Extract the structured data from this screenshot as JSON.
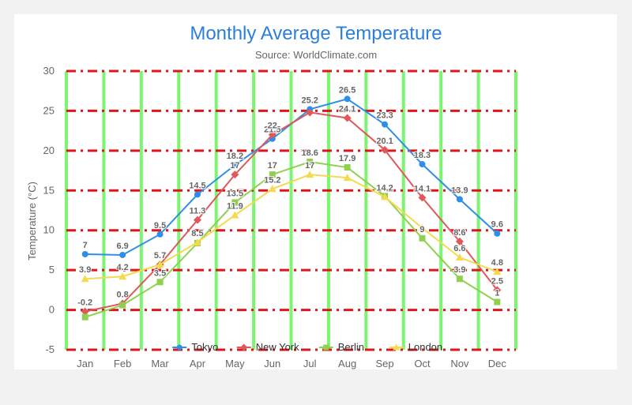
{
  "chart_data": {
    "type": "line",
    "title": "Monthly Average Temperature",
    "subtitle": "Source: WorldClimate.com",
    "xlabel": "",
    "ylabel": "Temperature (°C)",
    "categories": [
      "Jan",
      "Feb",
      "Mar",
      "Apr",
      "May",
      "Jun",
      "Jul",
      "Aug",
      "Sep",
      "Oct",
      "Nov",
      "Dec"
    ],
    "ylim": [
      -5,
      30
    ],
    "yticks": [
      -5,
      0,
      5,
      10,
      15,
      20,
      25,
      30
    ],
    "grid": true,
    "legend_position": "bottom",
    "series": [
      {
        "name": "Tokyo",
        "color": "#2f8ee8",
        "marker": "circle",
        "values": [
          7.0,
          6.9,
          9.5,
          14.5,
          18.2,
          21.5,
          25.2,
          26.5,
          23.3,
          18.3,
          13.9,
          9.6
        ],
        "labels": [
          "7",
          "6.9",
          "9.5",
          "14.5",
          "18.2",
          "21.5",
          "25.2",
          "26.5",
          "23.3",
          "18.3",
          "13.9",
          "9.6"
        ]
      },
      {
        "name": "New York",
        "color": "#e0575c",
        "marker": "diamond",
        "values": [
          -0.2,
          0.8,
          5.7,
          11.3,
          17.0,
          22.0,
          24.8,
          24.1,
          20.1,
          14.1,
          8.6,
          2.5
        ],
        "labels": [
          "-0.2",
          "0.8",
          "5.7",
          "11.3",
          "17",
          "22",
          "24.8",
          "24.1",
          "20.1",
          "14.1",
          "8.6",
          "2.5"
        ]
      },
      {
        "name": "Berlin",
        "color": "#8fd14f",
        "marker": "square",
        "values": [
          -0.9,
          0.6,
          3.5,
          8.4,
          13.5,
          17.0,
          18.6,
          17.9,
          14.3,
          9.0,
          3.9,
          1.0
        ],
        "labels": [
          "-0.9",
          "0.6",
          "3.5",
          "8.4",
          "13.5",
          "17",
          "18.6",
          "17.9",
          "14.3",
          "9",
          "3.9",
          "1"
        ]
      },
      {
        "name": "London",
        "color": "#f5d94e",
        "marker": "triangle",
        "values": [
          3.9,
          4.2,
          5.7,
          8.5,
          11.9,
          15.2,
          17.0,
          16.6,
          14.2,
          10.3,
          6.6,
          4.8
        ],
        "labels": [
          "3.9",
          "4.2",
          "5.7",
          "8.5",
          "11.9",
          "15.2",
          "17",
          "16.6",
          "14.2",
          "10.3",
          "6.6",
          "4.8"
        ]
      }
    ],
    "visible_point_labels": {
      "Tokyo": [
        0,
        1,
        2,
        3,
        4,
        5,
        6,
        7,
        8,
        9,
        10,
        11
      ],
      "New York": [
        0,
        1,
        3,
        4,
        5,
        7,
        8,
        9,
        10,
        11
      ],
      "Berlin": [
        2,
        4,
        5,
        6,
        7,
        9,
        10,
        11
      ],
      "London": [
        0,
        1,
        2,
        3,
        4,
        5,
        6,
        8,
        10,
        11
      ]
    },
    "grid_colors": {
      "horizontal": "#e0151b",
      "vertical": "#7cf571"
    }
  }
}
